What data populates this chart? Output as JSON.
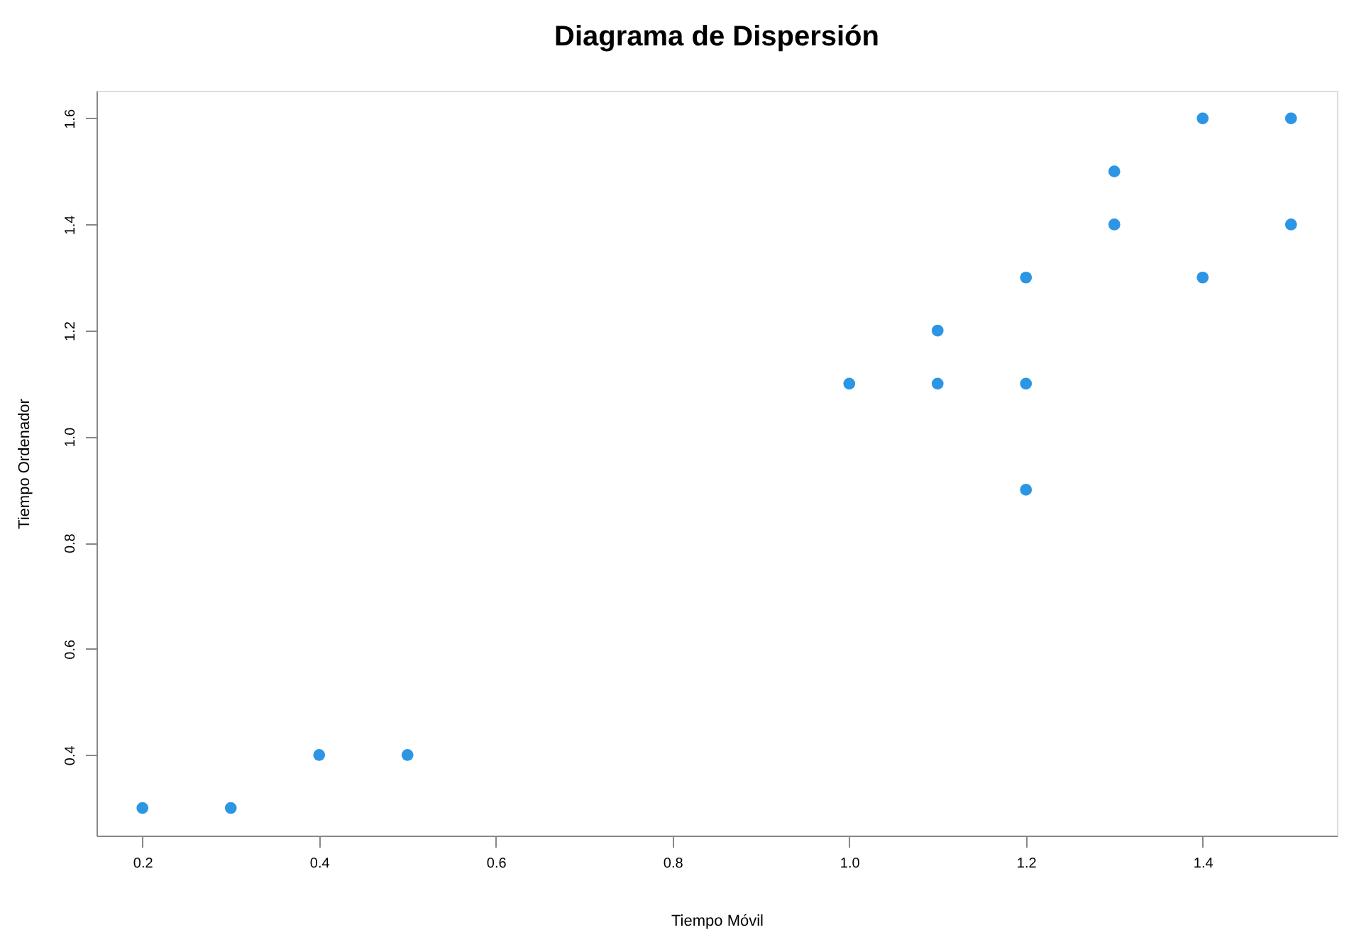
{
  "chart_data": {
    "type": "scatter",
    "title": "Diagrama de Dispersión",
    "xlabel": "Tiempo Móvil",
    "ylabel": "Tiempo Ordenador",
    "x": [
      0.2,
      0.3,
      0.4,
      0.5,
      1.0,
      1.1,
      1.1,
      1.2,
      1.2,
      1.2,
      1.3,
      1.3,
      1.4,
      1.4,
      1.5,
      1.5
    ],
    "series": [
      {
        "color": "#2c96e4",
        "values": [
          0.3,
          0.3,
          0.4,
          0.4,
          1.1,
          1.2,
          1.1,
          1.3,
          1.1,
          0.9,
          1.5,
          1.4,
          1.6,
          1.3,
          1.6,
          1.4
        ]
      }
    ],
    "xlim": [
      0.148,
      1.552
    ],
    "ylim": [
      0.248,
      1.652
    ],
    "xticks": [
      0.2,
      0.4,
      0.6,
      0.8,
      {
        "value": 1,
        "label": "1.0"
      },
      1.2,
      1.4
    ],
    "yticks": [
      0.4,
      0.6,
      0.8,
      {
        "value": 1,
        "label": "1.0"
      },
      1.2,
      1.4,
      1.6
    ],
    "marker": "circle",
    "grid": false
  }
}
